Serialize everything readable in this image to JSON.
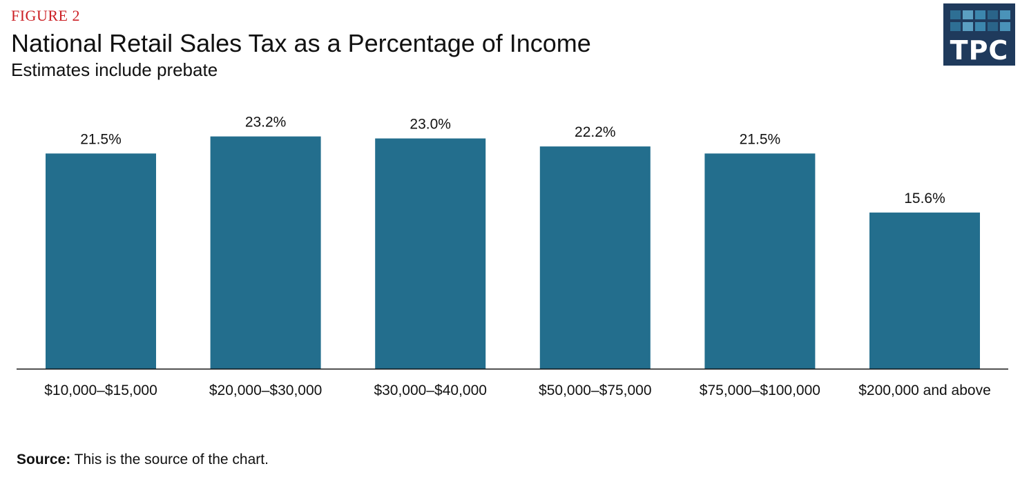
{
  "header": {
    "figure_label": "FIGURE 2",
    "title": "National Retail Sales Tax as a Percentage of Income",
    "subtitle": "Estimates include prebate"
  },
  "logo": {
    "text": "TPC",
    "background": "#1f3a5c",
    "cell_colors": [
      "#2e6f94",
      "#5b9fc2",
      "#3c86ad",
      "#2a6489",
      "#4a93b9"
    ]
  },
  "chart_data": {
    "type": "bar",
    "categories": [
      "$10,000–$15,000",
      "$20,000–$30,000",
      "$30,000–$40,000",
      "$50,000–$75,000",
      "$75,000–$100,000",
      "$200,000 and above"
    ],
    "values": [
      21.5,
      23.2,
      23.0,
      22.2,
      21.5,
      15.6
    ],
    "data_labels": [
      "21.5%",
      "23.2%",
      "23.0%",
      "22.2%",
      "21.5%",
      "15.6%"
    ],
    "ylim": [
      0,
      25
    ],
    "grid": false,
    "bar_color": "#236e8d"
  },
  "footer": {
    "source_label": "Source:",
    "source_text": " This is the source of the chart."
  }
}
